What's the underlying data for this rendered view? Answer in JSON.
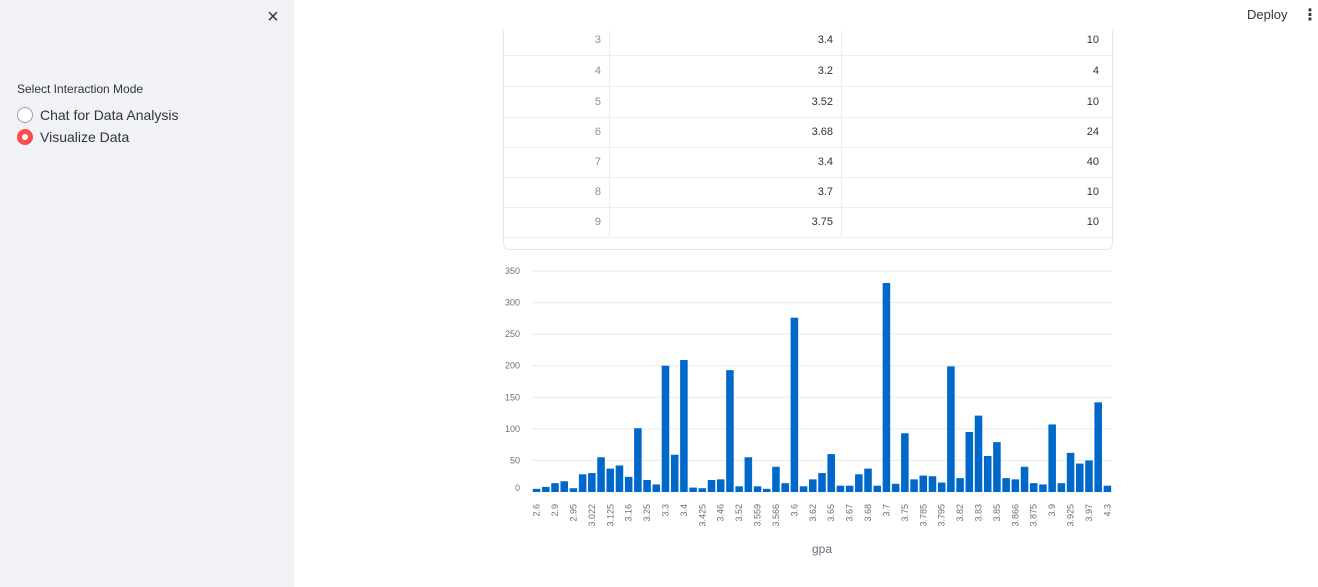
{
  "sidebar": {
    "close_icon": "×",
    "mode_label": "Select Interaction Mode",
    "options": [
      {
        "label": "Chat for Data Analysis",
        "selected": false
      },
      {
        "label": "Visualize Data",
        "selected": true
      }
    ],
    "accent_color": "#ff4b4b"
  },
  "header": {
    "deploy_label": "Deploy",
    "menu_icon": "⋮"
  },
  "table": {
    "rows": [
      {
        "index": "3",
        "gpa": "3.4",
        "value": "10"
      },
      {
        "index": "4",
        "gpa": "3.2",
        "value": "4"
      },
      {
        "index": "5",
        "gpa": "3.52",
        "value": "10"
      },
      {
        "index": "6",
        "gpa": "3.68",
        "value": "24"
      },
      {
        "index": "7",
        "gpa": "3.4",
        "value": "40"
      },
      {
        "index": "8",
        "gpa": "3.7",
        "value": "10"
      },
      {
        "index": "9",
        "gpa": "3.75",
        "value": "10"
      }
    ]
  },
  "chart_data": {
    "type": "bar",
    "xlabel": "gpa",
    "ylabel": "",
    "ylim": [
      0,
      350
    ],
    "yticks": [
      0,
      50,
      100,
      150,
      200,
      250,
      300,
      350
    ],
    "bar_color": "#0068c9",
    "values": [
      5,
      8,
      14,
      17,
      6,
      28,
      30,
      55,
      37,
      42,
      24,
      101,
      19,
      12,
      200,
      59,
      209,
      7,
      6,
      19,
      20,
      193,
      9,
      55,
      9,
      5,
      40,
      14,
      276,
      9,
      20,
      30,
      60,
      10,
      10,
      28,
      37,
      10,
      331,
      13,
      93,
      20,
      26,
      25,
      15,
      199,
      22,
      95,
      121,
      57,
      79,
      22,
      20,
      40,
      14,
      12,
      107,
      14,
      62,
      45,
      50,
      142,
      10
    ],
    "tick_labels": [
      {
        "bar": 0,
        "label": "2.6"
      },
      {
        "bar": 2,
        "label": "2.9"
      },
      {
        "bar": 4,
        "label": "2.95"
      },
      {
        "bar": 6,
        "label": "3.022"
      },
      {
        "bar": 8,
        "label": "3.125"
      },
      {
        "bar": 10,
        "label": "3.16"
      },
      {
        "bar": 12,
        "label": "3.25"
      },
      {
        "bar": 14,
        "label": "3.3"
      },
      {
        "bar": 16,
        "label": "3.4"
      },
      {
        "bar": 18,
        "label": "3.425"
      },
      {
        "bar": 20,
        "label": "3.46"
      },
      {
        "bar": 22,
        "label": "3.52"
      },
      {
        "bar": 24,
        "label": "3.559"
      },
      {
        "bar": 26,
        "label": "3.566"
      },
      {
        "bar": 28,
        "label": "3.6"
      },
      {
        "bar": 30,
        "label": "3.62"
      },
      {
        "bar": 32,
        "label": "3.65"
      },
      {
        "bar": 34,
        "label": "3.67"
      },
      {
        "bar": 36,
        "label": "3.68"
      },
      {
        "bar": 38,
        "label": "3.7"
      },
      {
        "bar": 40,
        "label": "3.75"
      },
      {
        "bar": 42,
        "label": "3.785"
      },
      {
        "bar": 44,
        "label": "3.795"
      },
      {
        "bar": 46,
        "label": "3.82"
      },
      {
        "bar": 48,
        "label": "3.83"
      },
      {
        "bar": 50,
        "label": "3.85"
      },
      {
        "bar": 52,
        "label": "3.866"
      },
      {
        "bar": 54,
        "label": "3.875"
      },
      {
        "bar": 56,
        "label": "3.9"
      },
      {
        "bar": 58,
        "label": "3.925"
      },
      {
        "bar": 60,
        "label": "3.97"
      },
      {
        "bar": 62,
        "label": "4.3"
      }
    ]
  }
}
